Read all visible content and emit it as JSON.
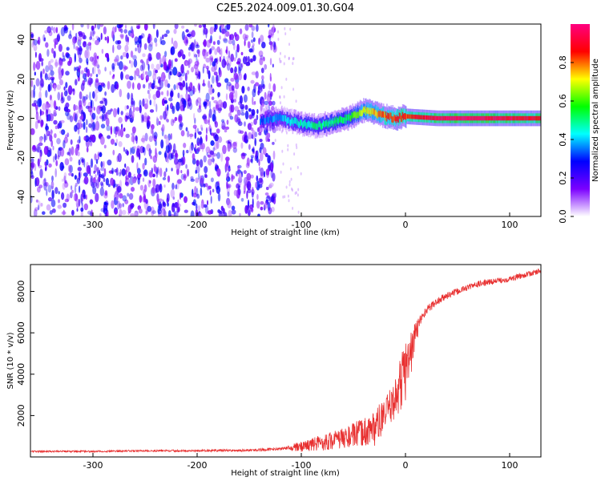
{
  "figure": {
    "title": "C2E5.2024.009.01.30.G04"
  },
  "chart_data": [
    {
      "type": "heatmap",
      "xlabel": "Height of straight line (km)",
      "ylabel": "Frequency (Hz)",
      "xlim": [
        -360,
        130
      ],
      "ylim": [
        -50,
        48
      ],
      "x_ticks": [
        -300,
        -200,
        -100,
        0,
        100
      ],
      "x_tick_labels": [
        "-300",
        "-200",
        "-100",
        "0",
        "100"
      ],
      "y_ticks": [
        40,
        20,
        0,
        -20,
        -40
      ],
      "y_tick_labels": [
        "40",
        "20",
        "0",
        "-20",
        "-40"
      ],
      "colorbar": {
        "label": "Normalized spectral amplitude",
        "range": [
          0.0,
          1.0
        ],
        "ticks": [
          0.0,
          0.2,
          0.4,
          0.6,
          0.8
        ],
        "tick_labels": [
          "0.0",
          "0.2",
          "0.4",
          "0.6",
          "0.8"
        ],
        "colors": [
          "#ffffff",
          "#7b00ff",
          "#0000ff",
          "#00ffff",
          "#00ff00",
          "#ffff00",
          "#ff0000",
          "#ff0080"
        ]
      },
      "noise_region": {
        "x": [
          -360,
          -125
        ],
        "y": [
          -50,
          48
        ],
        "amplitude": [
          0.05,
          0.3
        ]
      },
      "signal_ridge": {
        "x": [
          -140,
          -120,
          -100,
          -85,
          -70,
          -55,
          -40,
          -30,
          -20,
          -10,
          0,
          30,
          60,
          90,
          130
        ],
        "frequency": [
          -1,
          0,
          -3,
          -4,
          -2,
          0,
          4,
          3,
          1,
          0,
          1,
          0,
          0,
          0,
          0
        ],
        "amplitude": [
          0.3,
          0.4,
          0.45,
          0.5,
          0.5,
          0.55,
          0.7,
          0.75,
          0.8,
          0.85,
          0.85,
          0.95,
          1.0,
          0.95,
          0.9
        ]
      }
    },
    {
      "type": "line",
      "xlabel": "Height of straight line (km)",
      "ylabel": "SNR (10 * v/v)",
      "xlim": [
        -360,
        130
      ],
      "ylim": [
        0,
        9300
      ],
      "x_ticks": [
        -300,
        -200,
        -100,
        0,
        100
      ],
      "x_tick_labels": [
        "-300",
        "-200",
        "-100",
        "0",
        "100"
      ],
      "y_ticks": [
        2000,
        4000,
        6000,
        8000
      ],
      "y_tick_labels": [
        "2000",
        "4000",
        "6000",
        "8000"
      ],
      "color": "#e83030",
      "x": [
        -360,
        -300,
        -250,
        -200,
        -150,
        -120,
        -100,
        -80,
        -60,
        -40,
        -30,
        -20,
        -10,
        -5,
        0,
        5,
        10,
        15,
        20,
        30,
        40,
        50,
        60,
        70,
        80,
        100,
        130
      ],
      "y": [
        250,
        250,
        280,
        280,
        300,
        350,
        500,
        700,
        900,
        1200,
        1400,
        2000,
        2800,
        3500,
        4200,
        5000,
        6000,
        6700,
        7100,
        7500,
        7800,
        8000,
        8200,
        8350,
        8450,
        8600,
        9000
      ],
      "noise_amplitude": [
        80,
        90,
        90,
        100,
        120,
        150,
        250,
        400,
        500,
        700,
        900,
        800,
        900,
        1500,
        1500,
        1200,
        600,
        300,
        200,
        200,
        180,
        160,
        150,
        150,
        150,
        140,
        130
      ]
    }
  ]
}
